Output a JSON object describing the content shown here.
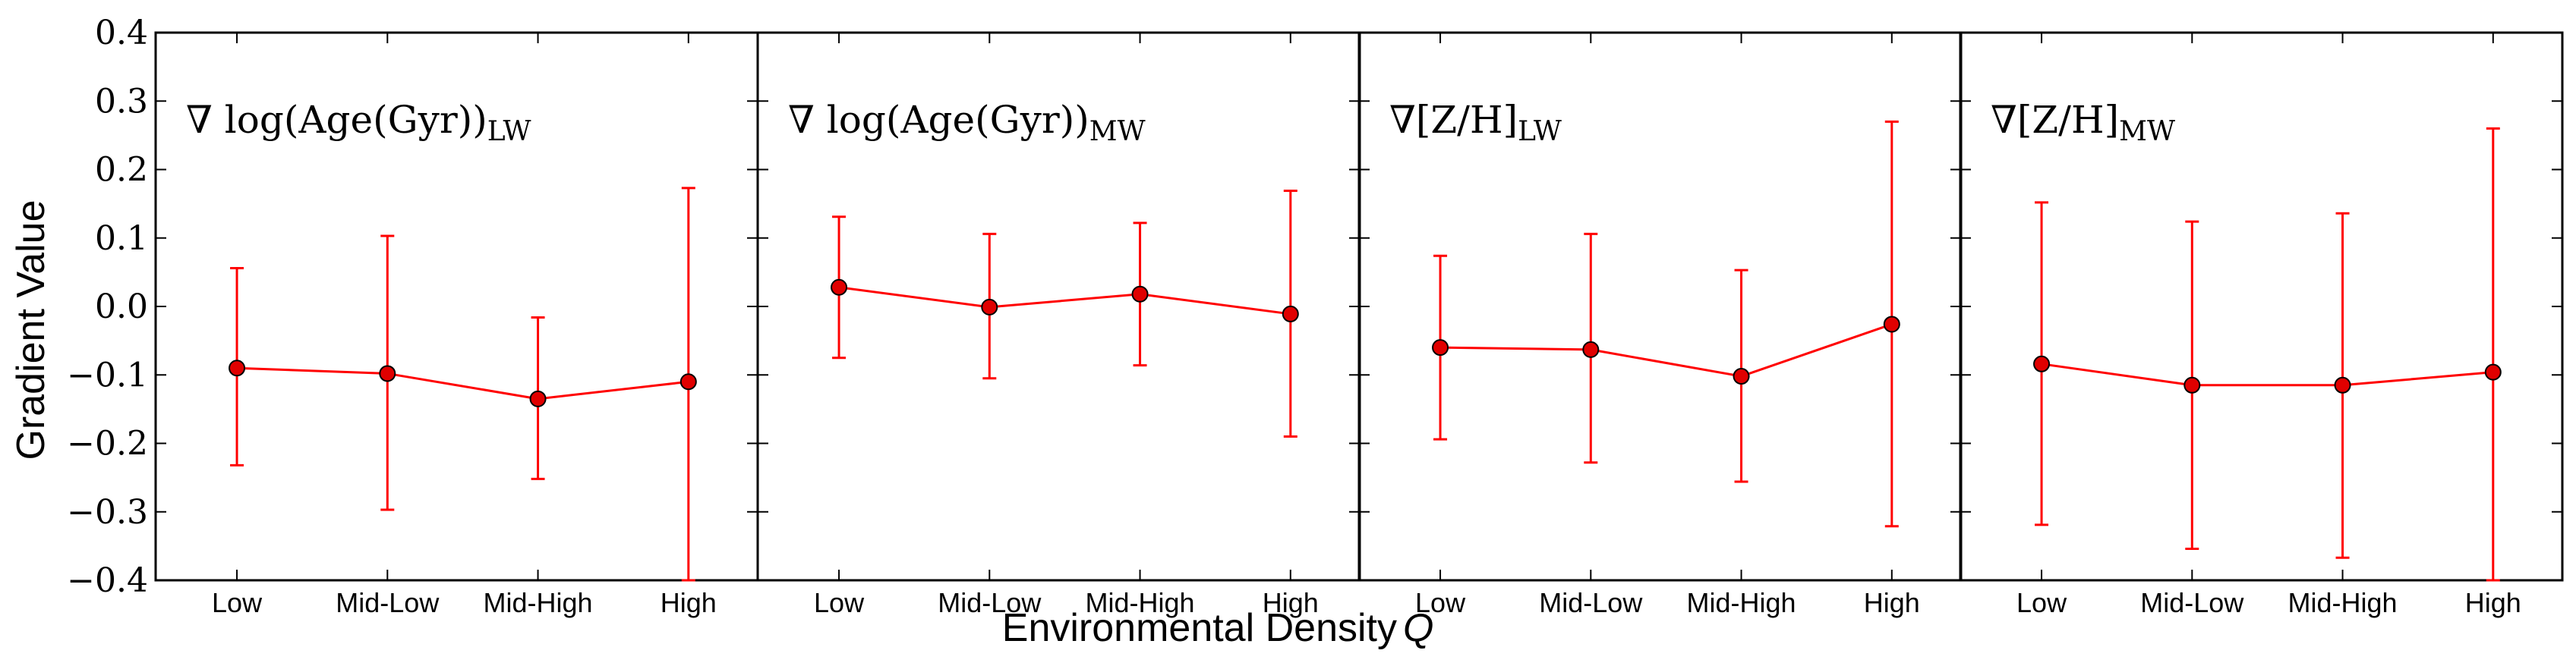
{
  "chart_data": {
    "type": "line",
    "xlabel": "Environmental Density",
    "xlabel_symbol": "Q",
    "ylabel": "Gradient Value",
    "ylim": [
      -0.4,
      0.4
    ],
    "yticks": [
      -0.4,
      -0.3,
      -0.2,
      -0.1,
      0.0,
      0.1,
      0.2,
      0.3,
      0.4
    ],
    "ytick_labels": [
      "−0.4",
      "−0.3",
      "−0.2",
      "−0.1",
      "0.0",
      "0.1",
      "0.2",
      "0.3",
      "0.4"
    ],
    "categories": [
      "Low",
      "Mid-Low",
      "Mid-High",
      "High"
    ],
    "color": "#ff0000",
    "marker_fill": "#e00000",
    "panels": [
      {
        "title_main": "∇ log(Age(Gyr))",
        "title_sub": "LW",
        "values": [
          -0.09,
          -0.098,
          -0.135,
          -0.11
        ],
        "err_low": [
          -0.232,
          -0.297,
          -0.252,
          -0.4
        ],
        "err_high": [
          0.056,
          0.103,
          -0.016,
          0.173
        ]
      },
      {
        "title_main": "∇ log(Age(Gyr))",
        "title_sub": "MW",
        "values": [
          0.028,
          -0.001,
          0.018,
          -0.011
        ],
        "err_low": [
          -0.075,
          -0.105,
          -0.086,
          -0.19
        ],
        "err_high": [
          0.131,
          0.106,
          0.122,
          0.169
        ]
      },
      {
        "title_main": "∇[Z/H]",
        "title_sub": "LW",
        "values": [
          -0.06,
          -0.063,
          -0.102,
          -0.026
        ],
        "err_low": [
          -0.194,
          -0.228,
          -0.256,
          -0.321
        ],
        "err_high": [
          0.074,
          0.106,
          0.053,
          0.27
        ]
      },
      {
        "title_main": "∇[Z/H]",
        "title_sub": "MW",
        "values": [
          -0.084,
          -0.115,
          -0.115,
          -0.096
        ],
        "err_low": [
          -0.319,
          -0.354,
          -0.367,
          -0.4
        ],
        "err_high": [
          0.152,
          0.124,
          0.136,
          0.26
        ]
      }
    ]
  }
}
